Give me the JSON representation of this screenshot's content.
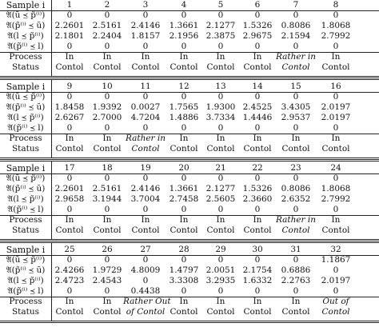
{
  "row_labels": {
    "sample": "Sample i",
    "r1": "𝔄(ũ ⪯ p̃⁽ⁱ⁾)",
    "r2": "𝔄(p̃⁽ⁱ⁾ ⪯ ũ)",
    "r3": "𝔄(l̃ ⪯ p̃⁽ⁱ⁾)",
    "r4": "𝔄(p̃⁽ⁱ⁾ ⪯ l̃)",
    "process": "Process",
    "status": "Status"
  },
  "blocks": [
    {
      "samples": [
        "1",
        "2",
        "3",
        "4",
        "5",
        "6",
        "7",
        "8"
      ],
      "r1": [
        "0",
        "0",
        "0",
        "0",
        "0",
        "0",
        "0",
        "0"
      ],
      "r2": [
        "2.2601",
        "2.5161",
        "2.4146",
        "1.3661",
        "2.1277",
        "1.5326",
        "0.8086",
        "1.8068"
      ],
      "r3": [
        "2.1801",
        "2.2404",
        "1.8157",
        "2.1956",
        "2.3875",
        "2.9675",
        "2.1594",
        "2.7992"
      ],
      "r4": [
        "0",
        "0",
        "0",
        "0",
        "0",
        "0",
        "0",
        "0"
      ],
      "status_top": [
        "In",
        "In",
        "In",
        "In",
        "In",
        "In",
        "Rather in",
        "In"
      ],
      "status_bottom": [
        "Contol",
        "Contol",
        "Contol",
        "Contol",
        "Contol",
        "Contol",
        "Contol",
        "Contol"
      ],
      "status_italic": [
        false,
        false,
        false,
        false,
        false,
        false,
        true,
        false
      ]
    },
    {
      "samples": [
        "9",
        "10",
        "11",
        "12",
        "13",
        "14",
        "15",
        "16"
      ],
      "r1": [
        "0",
        "0",
        "0",
        "0",
        "0",
        "0",
        "0",
        "0"
      ],
      "r2": [
        "1.8458",
        "1.9392",
        "0.0027",
        "1.7565",
        "1.9300",
        "2.4525",
        "3.4305",
        "2.0197"
      ],
      "r3": [
        "2.6267",
        "2.7000",
        "4.7204",
        "1.4886",
        "3.7334",
        "1.4446",
        "2.9537",
        "2.0197"
      ],
      "r4": [
        "0",
        "0",
        "0",
        "0",
        "0",
        "0",
        "0",
        "0"
      ],
      "status_top": [
        "In",
        "In",
        "Rather in",
        "In",
        "In",
        "In",
        "In",
        "In"
      ],
      "status_bottom": [
        "Contol",
        "Contol",
        "Contol",
        "Contol",
        "Contol",
        "Contol",
        "Contol",
        "Contol"
      ],
      "status_italic": [
        false,
        false,
        true,
        false,
        false,
        false,
        false,
        false
      ]
    },
    {
      "samples": [
        "17",
        "18",
        "19",
        "20",
        "21",
        "22",
        "23",
        "24"
      ],
      "r1": [
        "0",
        "0",
        "0",
        "0",
        "0",
        "0",
        "0",
        "0"
      ],
      "r2": [
        "2.2601",
        "2.5161",
        "2.4146",
        "1.3661",
        "2.1277",
        "1.5326",
        "0.8086",
        "1.8068"
      ],
      "r3": [
        "2.9658",
        "3.1944",
        "3.7004",
        "2.7458",
        "2.5605",
        "2.3660",
        "2.6352",
        "2.7992"
      ],
      "r4": [
        "0",
        "0",
        "0",
        "0",
        "0",
        "0",
        "0",
        "0"
      ],
      "status_top": [
        "In",
        "In",
        "In",
        "In",
        "In",
        "In",
        "Rather in",
        "In"
      ],
      "status_bottom": [
        "Contol",
        "Contol",
        "Contol",
        "Contol",
        "Contol",
        "Contol",
        "Contol",
        "Contol"
      ],
      "status_italic": [
        false,
        false,
        false,
        false,
        false,
        false,
        true,
        false
      ]
    },
    {
      "samples": [
        "25",
        "26",
        "27",
        "28",
        "29",
        "30",
        "31",
        "32"
      ],
      "r1": [
        "0",
        "0",
        "0",
        "0",
        "0",
        "0",
        "0",
        "1.1867"
      ],
      "r2": [
        "2.4266",
        "1.9729",
        "4.8009",
        "1.4797",
        "2.0051",
        "2.1754",
        "0.6886",
        "0"
      ],
      "r3": [
        "2.4723",
        "2.4543",
        "0",
        "3.3308",
        "3.2935",
        "1.6332",
        "2.2763",
        "2.0197"
      ],
      "r4": [
        "0",
        "0",
        "0.4438",
        "0",
        "0",
        "0",
        "0",
        "0"
      ],
      "status_top": [
        "In",
        "In",
        "Rather Out",
        "In",
        "In",
        "In",
        "In",
        "Out of"
      ],
      "status_bottom": [
        "Contol",
        "Contol",
        "of Contol",
        "Contol",
        "Contol",
        "Contol",
        "Contol",
        "Contol"
      ],
      "status_italic": [
        false,
        false,
        true,
        false,
        false,
        false,
        false,
        true
      ]
    }
  ]
}
